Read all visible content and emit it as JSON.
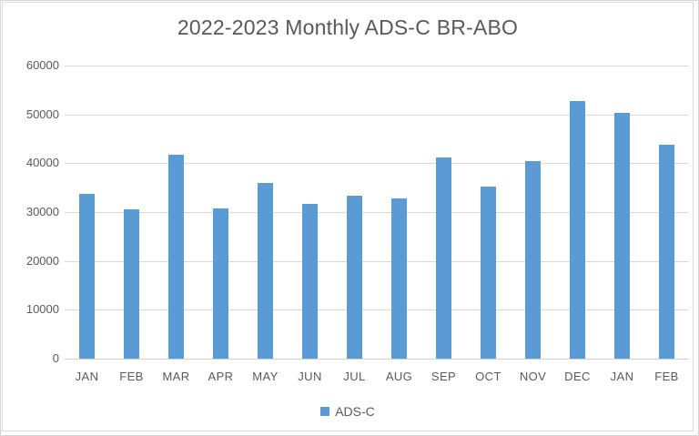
{
  "chart_data": {
    "type": "bar",
    "title": "2022-2023 Monthly ADS-C BR-ABO",
    "categories": [
      "JAN",
      "FEB",
      "MAR",
      "APR",
      "MAY",
      "JUN",
      "JUL",
      "AUG",
      "SEP",
      "OCT",
      "NOV",
      "DEC",
      "JAN",
      "FEB"
    ],
    "series": [
      {
        "name": "ADS-C",
        "values": [
          33800,
          30500,
          41800,
          30800,
          35900,
          31700,
          33400,
          32800,
          41100,
          35300,
          40400,
          52800,
          50400,
          43800
        ]
      }
    ],
    "xlabel": "",
    "ylabel": "",
    "ylim": [
      0,
      60000
    ],
    "y_ticks": [
      0,
      10000,
      20000,
      30000,
      40000,
      50000,
      60000
    ],
    "grid": true,
    "legend_position": "bottom",
    "colors": {
      "bar": "#5b9bd5",
      "text": "#595959",
      "gridline": "#d9d9d9"
    }
  },
  "legend": {
    "label": "ADS-C"
  }
}
